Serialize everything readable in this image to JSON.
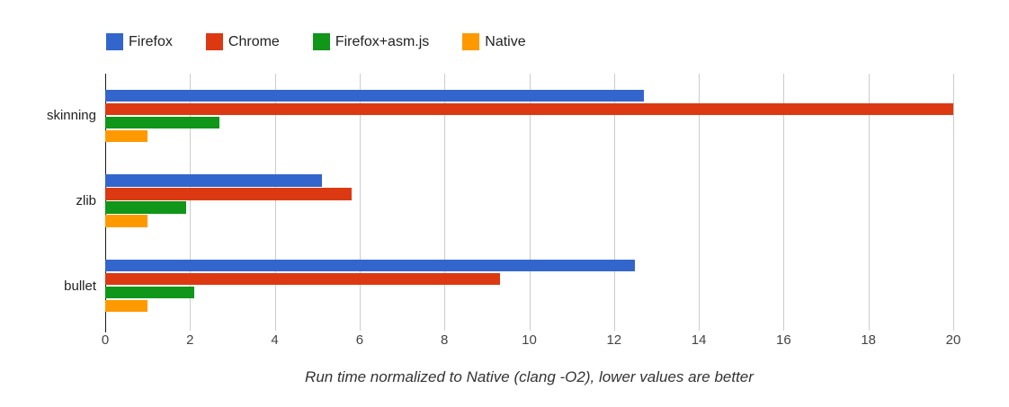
{
  "chart_data": {
    "type": "bar",
    "orientation": "horizontal",
    "caption": "Run time normalized to Native (clang -O2), lower values are better",
    "categories": [
      "skinning",
      "zlib",
      "bullet"
    ],
    "series": [
      {
        "name": "Firefox",
        "color": "#3366CC",
        "values": [
          12.7,
          5.1,
          12.5
        ]
      },
      {
        "name": "Chrome",
        "color": "#DC3912",
        "values": [
          20.0,
          5.8,
          9.3
        ]
      },
      {
        "name": "Firefox+asm.js",
        "color": "#109618",
        "values": [
          2.7,
          1.9,
          2.1
        ]
      },
      {
        "name": "Native",
        "color": "#FF9900",
        "values": [
          1.0,
          1.0,
          1.0
        ]
      }
    ],
    "xlim": [
      0,
      20
    ],
    "x_ticks": [
      0,
      2,
      4,
      6,
      8,
      10,
      12,
      14,
      16,
      18,
      20
    ],
    "grid": true,
    "legend_position": "top",
    "gridline_color": "#cccccc",
    "axis_line_color": "#1a1a1a",
    "tick_label_color": "#444444",
    "category_label_color": "#222222"
  }
}
